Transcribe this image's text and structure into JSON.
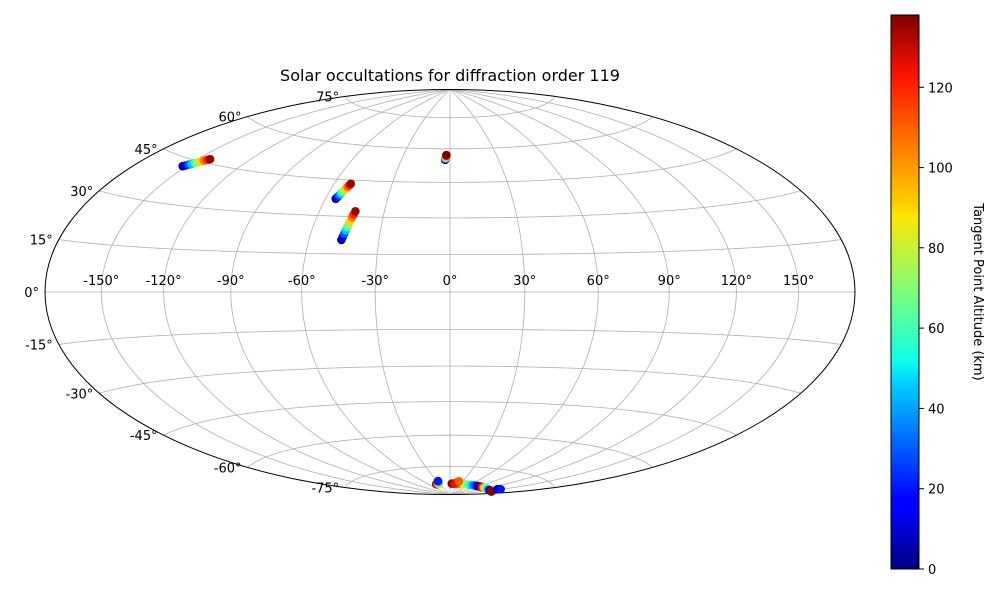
{
  "chart_data": {
    "type": "scatter",
    "projection": "hammer",
    "title": "Solar occultations for diffraction order 119",
    "xlabel": "",
    "ylabel": "",
    "longitude_ticks": [
      "-150°",
      "-120°",
      "-90°",
      "-60°",
      "-30°",
      "0°",
      "30°",
      "60°",
      "90°",
      "120°",
      "150°"
    ],
    "latitude_ticks": [
      "75°",
      "60°",
      "45°",
      "30°",
      "15°",
      "0°",
      "-15°",
      "-30°",
      "-45°",
      "-60°",
      "-75°"
    ],
    "grid": true,
    "colorbar": {
      "label": "Tangent Point Altitude (km)",
      "colormap": "jet",
      "range": [
        0,
        138
      ],
      "ticks": [
        "0",
        "20",
        "40",
        "60",
        "80",
        "100",
        "120"
      ]
    },
    "series": [
      {
        "x": [
          -152,
          -151,
          -150,
          -149,
          -148,
          -147,
          -146,
          -145,
          -144,
          -143
        ],
        "y": [
          42.4,
          42.8,
          43.3,
          43.7,
          44.2,
          44.6,
          45.1,
          45.5,
          46.0,
          46.4
        ],
        "c": [
          0,
          15,
          30,
          45,
          60,
          75,
          90,
          105,
          120,
          135
        ]
      },
      {
        "x": [
          -55,
          -54.6,
          -54.2,
          -53.8,
          -53.4,
          -53.0,
          -52.6,
          -52.2,
          -51.8,
          -51.4
        ],
        "y": [
          37.0,
          37.7,
          38.4,
          39.1,
          39.8,
          40.6,
          41.3,
          42.0,
          42.7,
          43.4
        ],
        "c": [
          0,
          15,
          30,
          45,
          60,
          75,
          90,
          105,
          120,
          135
        ]
      },
      {
        "x": [
          -46,
          -45.7,
          -45.4,
          -45.1,
          -44.8,
          -44.5,
          -44.2,
          -43.9,
          -43.6,
          -43.3
        ],
        "y": [
          20.5,
          21.8,
          23.1,
          24.4,
          25.7,
          27.0,
          28.3,
          29.6,
          30.9,
          32.2
        ],
        "c": [
          0,
          15,
          30,
          45,
          60,
          75,
          90,
          105,
          120,
          135
        ]
      },
      {
        "x": [
          -3,
          -2.9,
          -2.8,
          -2.7,
          -2.6,
          -2.5,
          -2.4,
          -2.3
        ],
        "y": [
          55.0,
          55.3,
          55.6,
          55.9,
          56.2,
          56.5,
          56.8,
          57.1
        ],
        "c": [
          0,
          20,
          40,
          60,
          80,
          100,
          120,
          138
        ]
      },
      {
        "x": [
          -40,
          -38,
          -36,
          -34,
          -32,
          -30,
          -29,
          -28
        ],
        "y": [
          -84,
          -84,
          -84,
          -84,
          -84,
          -83.5,
          -83,
          -82.5
        ],
        "c": [
          138,
          130,
          120,
          105,
          90,
          70,
          45,
          20
        ]
      },
      {
        "x": [
          5,
          10,
          15,
          20,
          25,
          30,
          35,
          40,
          45,
          50,
          55,
          60,
          65,
          70,
          75,
          80,
          85,
          90,
          95
        ],
        "y": [
          -84,
          -84,
          -84,
          -84,
          -84,
          -84,
          -84,
          -84,
          -84,
          -84,
          -84,
          -84,
          -84,
          -84,
          -84,
          -84,
          -84,
          -84,
          -84
        ],
        "c": [
          138,
          132,
          126,
          120,
          112,
          104,
          96,
          88,
          80,
          72,
          64,
          56,
          48,
          40,
          32,
          24,
          16,
          8,
          0
        ]
      },
      {
        "x": [
          18,
          19,
          20,
          21
        ],
        "y": [
          -83.2,
          -83.0,
          -82.8,
          -82.6
        ],
        "c": [
          130,
          125,
          120,
          110
        ]
      },
      {
        "x": [
          100,
          104,
          108,
          112,
          116,
          120,
          124,
          128,
          132,
          136,
          140,
          144,
          148,
          152,
          156,
          160
        ],
        "y": [
          -84,
          -84,
          -84,
          -84,
          -84,
          -84,
          -84,
          -84,
          -84,
          -84,
          -84,
          -84,
          -84,
          -84,
          -84,
          -84
        ],
        "c": [
          138,
          125,
          112,
          99,
          90,
          80,
          70,
          60,
          50,
          40,
          30,
          20,
          10,
          0,
          130,
          138
        ]
      },
      {
        "x": [
          145,
          147,
          149
        ],
        "y": [
          -82.8,
          -82.6,
          -82.4
        ],
        "c": [
          0,
          10,
          20
        ]
      }
    ]
  }
}
